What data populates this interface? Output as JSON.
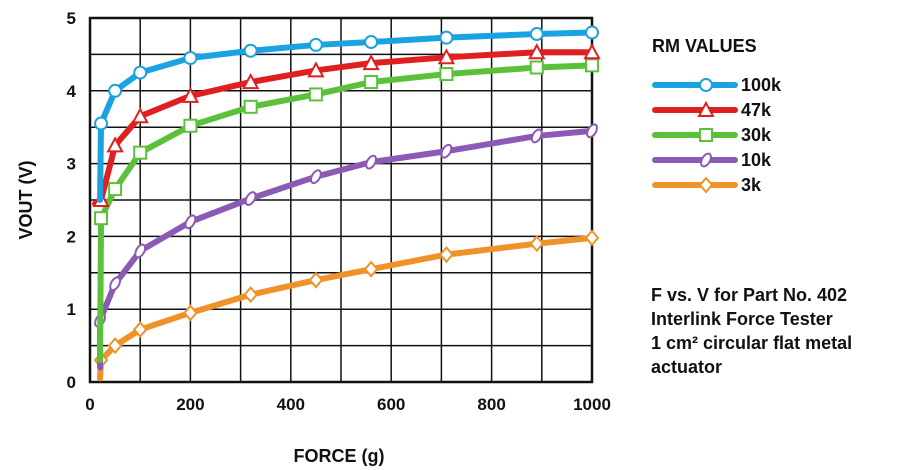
{
  "chart_data": {
    "type": "line",
    "title": "",
    "xlabel": "FORCE (g)",
    "ylabel": "VOUT (V)",
    "xlim": [
      0,
      1000
    ],
    "ylim": [
      0,
      5
    ],
    "x_ticks": [
      "0",
      "200",
      "400",
      "600",
      "800",
      "1000"
    ],
    "y_ticks": [
      "0",
      "1",
      "2",
      "3",
      "4",
      "5"
    ],
    "grid": true,
    "legend": {
      "title": "RM VALUES",
      "placement": "right"
    },
    "series": [
      {
        "name": "100k",
        "color": "#1aa3e0",
        "marker": "circle",
        "points": [
          [
            20,
            2.5
          ],
          [
            22,
            3.55
          ],
          [
            50,
            4.0
          ],
          [
            100,
            4.25
          ],
          [
            200,
            4.45
          ],
          [
            320,
            4.55
          ],
          [
            450,
            4.63
          ],
          [
            560,
            4.67
          ],
          [
            710,
            4.73
          ],
          [
            890,
            4.78
          ],
          [
            1000,
            4.8
          ]
        ]
      },
      {
        "name": "47k",
        "color": "#e02020",
        "marker": "triangle",
        "points": [
          [
            10,
            2.45
          ],
          [
            22,
            2.5
          ],
          [
            50,
            3.25
          ],
          [
            100,
            3.65
          ],
          [
            200,
            3.93
          ],
          [
            320,
            4.12
          ],
          [
            450,
            4.28
          ],
          [
            560,
            4.38
          ],
          [
            710,
            4.46
          ],
          [
            890,
            4.53
          ],
          [
            1000,
            4.53
          ]
        ]
      },
      {
        "name": "30k",
        "color": "#5cc13a",
        "marker": "square",
        "points": [
          [
            20,
            0.3
          ],
          [
            22,
            2.25
          ],
          [
            50,
            2.65
          ],
          [
            100,
            3.15
          ],
          [
            200,
            3.52
          ],
          [
            320,
            3.78
          ],
          [
            450,
            3.95
          ],
          [
            560,
            4.12
          ],
          [
            710,
            4.23
          ],
          [
            890,
            4.32
          ],
          [
            1000,
            4.35
          ]
        ]
      },
      {
        "name": "10k",
        "color": "#8a5ab5",
        "marker": "ellipse",
        "points": [
          [
            20,
            0.2
          ],
          [
            20,
            0.85
          ],
          [
            50,
            1.35
          ],
          [
            100,
            1.8
          ],
          [
            200,
            2.2
          ],
          [
            320,
            2.52
          ],
          [
            450,
            2.82
          ],
          [
            560,
            3.02
          ],
          [
            710,
            3.17
          ],
          [
            890,
            3.38
          ],
          [
            1000,
            3.45
          ]
        ]
      },
      {
        "name": "3k",
        "color": "#f0922a",
        "marker": "diamond",
        "points": [
          [
            20,
            0.05
          ],
          [
            22,
            0.3
          ],
          [
            50,
            0.5
          ],
          [
            100,
            0.72
          ],
          [
            200,
            0.95
          ],
          [
            320,
            1.2
          ],
          [
            450,
            1.4
          ],
          [
            560,
            1.55
          ],
          [
            710,
            1.75
          ],
          [
            890,
            1.9
          ],
          [
            1000,
            1.98
          ]
        ]
      }
    ],
    "annotation": [
      "F vs. V for Part No. 402",
      "Interlink Force Tester",
      "1 cm² circular flat metal",
      "actuator"
    ]
  }
}
